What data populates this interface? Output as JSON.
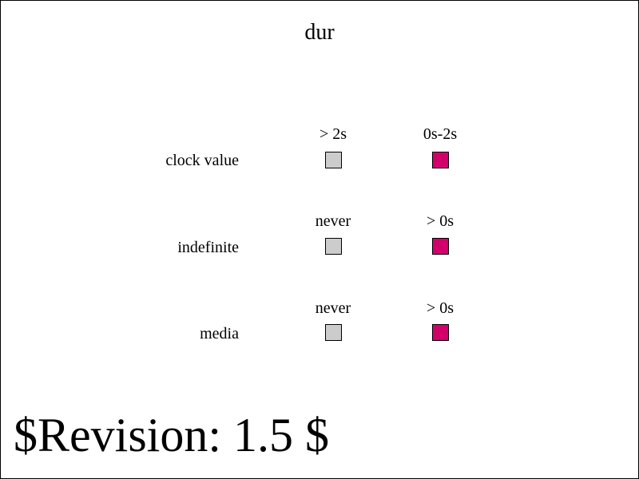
{
  "title": "dur",
  "colors": {
    "inactive": "#cccccc",
    "active": "#d3006b",
    "border": "#000000"
  },
  "rows": [
    {
      "label": "clock value",
      "left_state": "> 2s",
      "right_state": "0s-2s"
    },
    {
      "label": "indefinite",
      "left_state": "never",
      "right_state": "> 0s"
    },
    {
      "label": "media",
      "left_state": "never",
      "right_state": "> 0s"
    }
  ],
  "footer": {
    "revision": "$Revision: 1.5 $"
  }
}
